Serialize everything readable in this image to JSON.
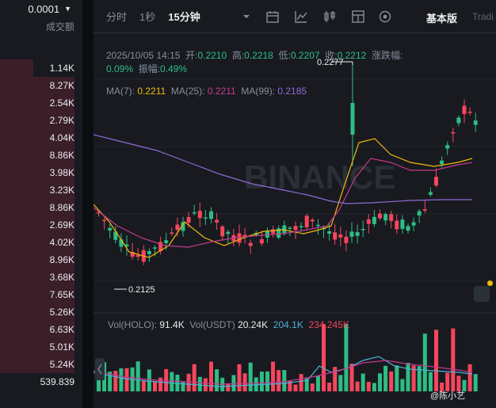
{
  "left_panel": {
    "precision": "0.0001",
    "column_header": "成交额",
    "rows": [
      {
        "value": "1.14K",
        "fill": 0.4
      },
      {
        "value": "8.27K",
        "fill": 0.9
      },
      {
        "value": "2.54K",
        "fill": 0.9
      },
      {
        "value": "2.79K",
        "fill": 0.9
      },
      {
        "value": "4.04K",
        "fill": 0.9
      },
      {
        "value": "8.86K",
        "fill": 0.9
      },
      {
        "value": "3.98K",
        "fill": 0.9
      },
      {
        "value": "3.23K",
        "fill": 0.9
      },
      {
        "value": "8.86K",
        "fill": 0.9
      },
      {
        "value": "2.69K",
        "fill": 0.9
      },
      {
        "value": "4.02K",
        "fill": 0.9
      },
      {
        "value": "8.96K",
        "fill": 0.9
      },
      {
        "value": "3.68K",
        "fill": 0.9
      },
      {
        "value": "7.65K",
        "fill": 0.9
      },
      {
        "value": "5.26K",
        "fill": 0.9
      },
      {
        "value": "6.63K",
        "fill": 0.9
      },
      {
        "value": "5.01K",
        "fill": 0.9
      },
      {
        "value": "5.24K",
        "fill": 0.9
      },
      {
        "value": "539.839",
        "fill": 0.0
      }
    ]
  },
  "toolbar": {
    "timeframes": [
      {
        "label": "分时",
        "active": false
      },
      {
        "label": "1秒",
        "active": false
      },
      {
        "label": "15分钟",
        "active": true
      }
    ],
    "icons": [
      "dropdown-icon",
      "chart-settings-icon",
      "indicator-icon",
      "candle-type-icon",
      "layout-icon",
      "settings-circle-icon"
    ],
    "view_basic": "基本版",
    "view_trading": "Tradi"
  },
  "ohlc": {
    "datetime": "2025/10/05 14:15",
    "open_label": "开:",
    "open": "0.2210",
    "high_label": "高:",
    "high": "0.2218",
    "low_label": "低:",
    "low": "0.2207",
    "close_label": "收:",
    "close": "0.2212",
    "change_label": "涨跌幅:",
    "change": "0.09%",
    "amplitude_label": "振幅:",
    "amplitude": "0.49%"
  },
  "ma": {
    "ma7_label": "MA(7):",
    "ma7": "0.2211",
    "ma25_label": "MA(25):",
    "ma25": "0.2211",
    "ma99_label": "MA(99):",
    "ma99": "0.2185"
  },
  "chart_marks": {
    "high_mark": "0.2277",
    "low_mark": "0.2125",
    "watermark": "BINANCE"
  },
  "volume": {
    "label_base": "Vol(HOLO):",
    "base": "91.4K",
    "label_quote": "Vol(USDT)",
    "quote": "20.24K",
    "ma5": "204.1K",
    "ma10": "234.245K"
  },
  "colors": {
    "up": "#2ebd85",
    "down": "#f6465d",
    "ma7": "#f0b90b",
    "ma25": "#c63a8c",
    "ma99": "#8f6ad6",
    "vol_ma5": "#4fb2d6"
  },
  "footer": {
    "credit": "@陈小艺"
  }
}
